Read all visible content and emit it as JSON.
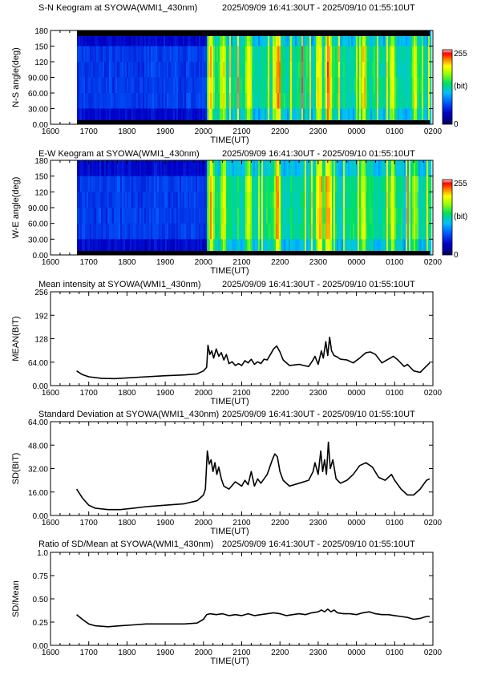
{
  "panels": [
    {
      "title": "S-N Keogram at SYOWA(WMI1_430nm)",
      "time_range": "2025/09/09 16:41:30UT - 2025/09/10 01:55:10UT"
    },
    {
      "title": "E-W Keogram at SYOWA(WMI1_430nm)",
      "time_range": "2025/09/09 16:41:30UT - 2025/09/10 01:55:10UT"
    },
    {
      "title": "Mean intensity at SYOWA(WMI1_430nm)",
      "time_range": "2025/09/09 16:41:30UT - 2025/09/10 01:55:10UT"
    },
    {
      "title": "Standard Deviation at SYOWA(WMI1_430nm)",
      "time_range": "2025/09/09 16:41:30UT - 2025/09/10 01:55:10UT"
    },
    {
      "title": "Ratio of SD/Mean at SYOWA(WMI1_430nm)",
      "time_range": "2025/09/09 16:41:30UT - 2025/09/10 01:55:10UT"
    }
  ],
  "colorbar": {
    "max_label": "255",
    "unit_label": "(bit)",
    "min_label": "0"
  },
  "chart_data": [
    {
      "type": "heatmap",
      "title": "S-N Keogram at SYOWA(WMI1_430nm)",
      "xlabel": "TIME(UT)",
      "ylabel": "N-S angle(deg)",
      "x_ticks": [
        "1600",
        "1700",
        "1800",
        "1900",
        "2000",
        "2100",
        "2200",
        "2300",
        "0000",
        "0100",
        "0200"
      ],
      "y_ticks": [
        "0.00",
        "30.00",
        "60.00",
        "90.00",
        "120",
        "150",
        "180"
      ],
      "ylim": [
        0,
        180
      ],
      "colorbar_range": [
        0,
        255
      ],
      "data_start": "16:41:30",
      "data_end": "01:55:10",
      "bright_bands": [
        {
          "time": "20:10",
          "level": 0.7
        },
        {
          "time": "20:30",
          "level": 0.6
        },
        {
          "time": "21:10",
          "level": 0.55
        },
        {
          "time": "21:55",
          "level": 0.85
        },
        {
          "time": "23:00",
          "level": 0.7
        },
        {
          "time": "23:15",
          "level": 0.95
        },
        {
          "time": "00:10",
          "level": 0.7
        },
        {
          "time": "00:55",
          "level": 0.6
        },
        {
          "time": "01:30",
          "level": 0.5
        }
      ]
    },
    {
      "type": "heatmap",
      "title": "E-W Keogram at SYOWA(WMI1_430nm)",
      "xlabel": "TIME(UT)",
      "ylabel": "W-E angle(deg)",
      "x_ticks": [
        "1600",
        "1700",
        "1800",
        "1900",
        "2000",
        "2100",
        "2200",
        "2300",
        "0000",
        "0100",
        "0200"
      ],
      "y_ticks": [
        "0.00",
        "30.00",
        "60.00",
        "90.00",
        "120",
        "150",
        "180"
      ],
      "ylim": [
        0,
        180
      ],
      "colorbar_range": [
        0,
        255
      ],
      "data_start": "16:41:30",
      "data_end": "01:55:10",
      "bright_bands": [
        {
          "time": "20:10",
          "level": 0.7
        },
        {
          "time": "20:30",
          "level": 0.6
        },
        {
          "time": "21:10",
          "level": 0.55
        },
        {
          "time": "21:55",
          "level": 0.8
        },
        {
          "time": "23:00",
          "level": 0.7
        },
        {
          "time": "23:15",
          "level": 0.9
        },
        {
          "time": "00:10",
          "level": 0.65
        },
        {
          "time": "00:55",
          "level": 0.55
        },
        {
          "time": "01:30",
          "level": 0.5
        }
      ]
    },
    {
      "type": "line",
      "title": "Mean intensity at SYOWA(WMI1_430nm)",
      "xlabel": "TIME(UT)",
      "ylabel": "MEAN(BIT)",
      "x_ticks": [
        "1600",
        "1700",
        "1800",
        "1900",
        "2000",
        "2100",
        "2200",
        "2300",
        "0000",
        "0100",
        "0200"
      ],
      "y_ticks": [
        "0.00",
        "64.00",
        "128",
        "192",
        "256"
      ],
      "ylim": [
        0,
        256
      ],
      "points": [
        [
          "16:41",
          40
        ],
        [
          "16:50",
          30
        ],
        [
          "17:00",
          24
        ],
        [
          "17:20",
          20
        ],
        [
          "17:40",
          19
        ],
        [
          "18:00",
          21
        ],
        [
          "18:30",
          24
        ],
        [
          "19:00",
          27
        ],
        [
          "19:30",
          29
        ],
        [
          "19:50",
          32
        ],
        [
          "20:00",
          40
        ],
        [
          "20:05",
          50
        ],
        [
          "20:07",
          110
        ],
        [
          "20:10",
          85
        ],
        [
          "20:13",
          95
        ],
        [
          "20:16",
          75
        ],
        [
          "20:20",
          100
        ],
        [
          "20:24",
          80
        ],
        [
          "20:28",
          90
        ],
        [
          "20:32",
          70
        ],
        [
          "20:36",
          85
        ],
        [
          "20:40",
          60
        ],
        [
          "20:45",
          65
        ],
        [
          "20:50",
          55
        ],
        [
          "20:55",
          60
        ],
        [
          "21:00",
          55
        ],
        [
          "21:05",
          68
        ],
        [
          "21:10",
          62
        ],
        [
          "21:15",
          72
        ],
        [
          "21:20",
          58
        ],
        [
          "21:25",
          65
        ],
        [
          "21:30",
          60
        ],
        [
          "21:35",
          72
        ],
        [
          "21:40",
          70
        ],
        [
          "21:45",
          85
        ],
        [
          "21:50",
          100
        ],
        [
          "21:55",
          108
        ],
        [
          "22:00",
          92
        ],
        [
          "22:05",
          70
        ],
        [
          "22:15",
          55
        ],
        [
          "22:30",
          58
        ],
        [
          "22:45",
          52
        ],
        [
          "22:52",
          70
        ],
        [
          "22:55",
          80
        ],
        [
          "23:00",
          58
        ],
        [
          "23:05",
          95
        ],
        [
          "23:08",
          75
        ],
        [
          "23:12",
          120
        ],
        [
          "23:15",
          82
        ],
        [
          "23:18",
          132
        ],
        [
          "23:21",
          95
        ],
        [
          "23:25",
          82
        ],
        [
          "23:30",
          78
        ],
        [
          "23:35",
          72
        ],
        [
          "23:45",
          70
        ],
        [
          "23:55",
          62
        ],
        [
          "00:05",
          75
        ],
        [
          "00:15",
          90
        ],
        [
          "00:22",
          92
        ],
        [
          "00:30",
          85
        ],
        [
          "00:40",
          62
        ],
        [
          "00:50",
          72
        ],
        [
          "00:58",
          80
        ],
        [
          "01:05",
          70
        ],
        [
          "01:15",
          52
        ],
        [
          "01:20",
          58
        ],
        [
          "01:30",
          40
        ],
        [
          "01:40",
          36
        ],
        [
          "01:48",
          50
        ],
        [
          "01:55",
          62
        ]
      ]
    },
    {
      "type": "line",
      "title": "Standard Deviation at SYOWA(WMI1_430nm)",
      "xlabel": "TIME(UT)",
      "ylabel": "SD(BIT)",
      "x_ticks": [
        "1600",
        "1700",
        "1800",
        "1900",
        "2000",
        "2100",
        "2200",
        "2300",
        "0000",
        "0100",
        "0200"
      ],
      "y_ticks": [
        "0.00",
        "16.00",
        "32.00",
        "48.00",
        "64.00"
      ],
      "ylim": [
        0,
        64
      ],
      "points": [
        [
          "16:41",
          18
        ],
        [
          "16:50",
          12
        ],
        [
          "17:00",
          7
        ],
        [
          "17:10",
          5
        ],
        [
          "17:30",
          4
        ],
        [
          "17:50",
          4
        ],
        [
          "18:10",
          5
        ],
        [
          "18:30",
          6
        ],
        [
          "19:00",
          7
        ],
        [
          "19:30",
          8
        ],
        [
          "19:50",
          10
        ],
        [
          "19:55",
          12
        ],
        [
          "20:00",
          14
        ],
        [
          "20:03",
          18
        ],
        [
          "20:06",
          44
        ],
        [
          "20:09",
          35
        ],
        [
          "20:12",
          38
        ],
        [
          "20:15",
          30
        ],
        [
          "20:18",
          36
        ],
        [
          "20:21",
          28
        ],
        [
          "20:24",
          33
        ],
        [
          "20:28",
          25
        ],
        [
          "20:32",
          20
        ],
        [
          "20:40",
          18
        ],
        [
          "20:50",
          23
        ],
        [
          "21:00",
          20
        ],
        [
          "21:05",
          24
        ],
        [
          "21:10",
          21
        ],
        [
          "21:15",
          30
        ],
        [
          "21:20",
          20
        ],
        [
          "21:25",
          25
        ],
        [
          "21:30",
          22
        ],
        [
          "21:40",
          28
        ],
        [
          "21:48",
          38
        ],
        [
          "21:52",
          42
        ],
        [
          "21:56",
          40
        ],
        [
          "22:00",
          30
        ],
        [
          "22:05",
          24
        ],
        [
          "22:15",
          20
        ],
        [
          "22:30",
          22
        ],
        [
          "22:45",
          24
        ],
        [
          "22:52",
          30
        ],
        [
          "22:55",
          36
        ],
        [
          "23:00",
          28
        ],
        [
          "23:04",
          44
        ],
        [
          "23:07",
          30
        ],
        [
          "23:10",
          38
        ],
        [
          "23:13",
          28
        ],
        [
          "23:16",
          50
        ],
        [
          "23:19",
          32
        ],
        [
          "23:23",
          38
        ],
        [
          "23:28",
          25
        ],
        [
          "23:35",
          22
        ],
        [
          "23:45",
          24
        ],
        [
          "23:55",
          28
        ],
        [
          "00:05",
          34
        ],
        [
          "00:15",
          36
        ],
        [
          "00:25",
          33
        ],
        [
          "00:35",
          26
        ],
        [
          "00:45",
          24
        ],
        [
          "00:55",
          28
        ],
        [
          "01:00",
          24
        ],
        [
          "01:10",
          18
        ],
        [
          "01:20",
          14
        ],
        [
          "01:30",
          14
        ],
        [
          "01:40",
          18
        ],
        [
          "01:50",
          24
        ],
        [
          "01:55",
          25
        ]
      ]
    },
    {
      "type": "line",
      "title": "Ratio of SD/Mean at SYOWA(WMI1_430nm)",
      "xlabel": "TIME(UT)",
      "ylabel": "SD/Mean",
      "x_ticks": [
        "1600",
        "1700",
        "1800",
        "1900",
        "2000",
        "2100",
        "2200",
        "2300",
        "0000",
        "0100",
        "0200"
      ],
      "y_ticks": [
        "0.00",
        "0.25",
        "0.50",
        "0.75",
        "1.0"
      ],
      "ylim": [
        0,
        1
      ],
      "points": [
        [
          "16:41",
          0.33
        ],
        [
          "16:50",
          0.28
        ],
        [
          "17:00",
          0.23
        ],
        [
          "17:10",
          0.21
        ],
        [
          "17:30",
          0.2
        ],
        [
          "17:50",
          0.21
        ],
        [
          "18:10",
          0.22
        ],
        [
          "18:30",
          0.23
        ],
        [
          "19:00",
          0.23
        ],
        [
          "19:30",
          0.23
        ],
        [
          "19:50",
          0.24
        ],
        [
          "20:00",
          0.28
        ],
        [
          "20:05",
          0.33
        ],
        [
          "20:10",
          0.34
        ],
        [
          "20:20",
          0.33
        ],
        [
          "20:30",
          0.34
        ],
        [
          "20:40",
          0.32
        ],
        [
          "20:50",
          0.33
        ],
        [
          "21:00",
          0.32
        ],
        [
          "21:10",
          0.34
        ],
        [
          "21:20",
          0.32
        ],
        [
          "21:30",
          0.33
        ],
        [
          "21:40",
          0.34
        ],
        [
          "21:50",
          0.35
        ],
        [
          "22:00",
          0.34
        ],
        [
          "22:10",
          0.32
        ],
        [
          "22:20",
          0.33
        ],
        [
          "22:30",
          0.34
        ],
        [
          "22:40",
          0.33
        ],
        [
          "22:50",
          0.35
        ],
        [
          "23:00",
          0.36
        ],
        [
          "23:05",
          0.38
        ],
        [
          "23:10",
          0.36
        ],
        [
          "23:15",
          0.39
        ],
        [
          "23:20",
          0.36
        ],
        [
          "23:25",
          0.38
        ],
        [
          "23:30",
          0.35
        ],
        [
          "23:40",
          0.34
        ],
        [
          "23:50",
          0.34
        ],
        [
          "00:00",
          0.33
        ],
        [
          "00:10",
          0.35
        ],
        [
          "00:20",
          0.36
        ],
        [
          "00:30",
          0.34
        ],
        [
          "00:40",
          0.33
        ],
        [
          "00:50",
          0.33
        ],
        [
          "01:00",
          0.32
        ],
        [
          "01:10",
          0.31
        ],
        [
          "01:20",
          0.3
        ],
        [
          "01:30",
          0.28
        ],
        [
          "01:40",
          0.29
        ],
        [
          "01:50",
          0.31
        ],
        [
          "01:55",
          0.31
        ]
      ]
    }
  ]
}
